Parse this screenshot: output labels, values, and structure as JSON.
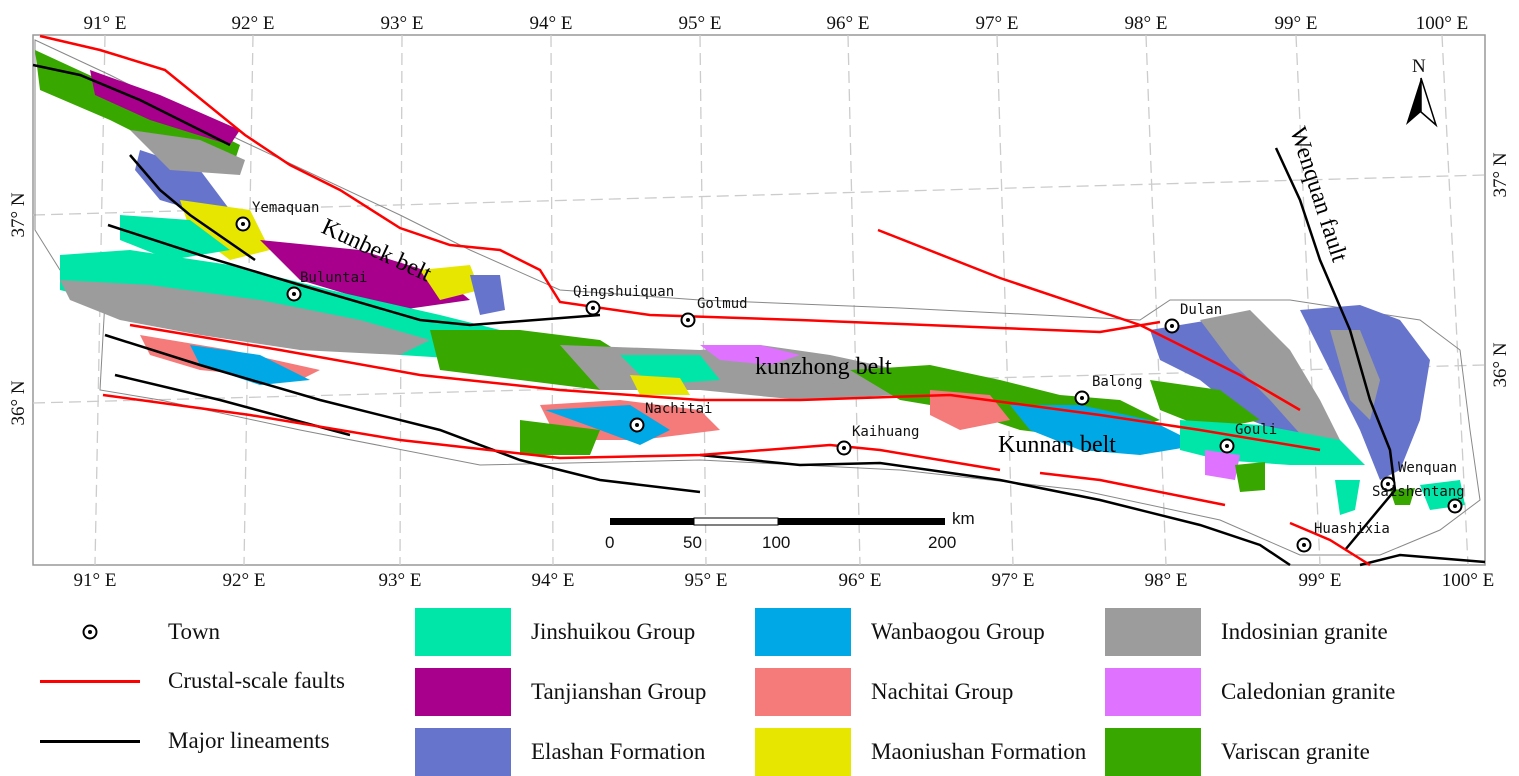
{
  "axes": {
    "lon_top": [
      "91° E",
      "92° E",
      "93° E",
      "94° E",
      "95° E",
      "96° E",
      "97° E",
      "98° E",
      "99° E",
      "100° E"
    ],
    "lon_bottom": [
      "91° E",
      "92° E",
      "93° E",
      "94° E",
      "95° E",
      "96° E",
      "97° E",
      "98° E",
      "99° E",
      "100° E"
    ],
    "lat_left": [
      "37° N",
      "36° N"
    ],
    "lat_right": [
      "37° N",
      "36° N"
    ]
  },
  "north_arrow": "N",
  "towns": [
    "Yemaquan",
    "Buluntai",
    "Qingshuiquan",
    "Golmud",
    "Dulan",
    "Balong",
    "Nachitai",
    "Kaihuang",
    "Gouli",
    "Wenquan",
    "Saishentang",
    "Huashixia"
  ],
  "belts": [
    "Kunbek belt",
    "kunzhong belt",
    "Kunnan belt"
  ],
  "fault_label": "Wenquan fault",
  "scale_bar": {
    "labels": [
      "0",
      "50",
      "100",
      "200"
    ],
    "unit": "km"
  },
  "legend": [
    {
      "label": "Town",
      "symbol": "town-icon"
    },
    {
      "label": "Crustal-scale faults",
      "color": "#ff0000"
    },
    {
      "label": "Major lineaments",
      "color": "#000000"
    },
    {
      "label": "Jinshuikou Group",
      "color": "#00e6a9"
    },
    {
      "label": "Tanjianshan Group",
      "color": "#a8008c"
    },
    {
      "label": "Elashan Formation",
      "color": "#6674cc"
    },
    {
      "label": "Wanbaogou Group",
      "color": "#00a9e6"
    },
    {
      "label": "Nachitai Group",
      "color": "#f57a7a"
    },
    {
      "label": "Maoniushan Formation",
      "color": "#e6e600"
    },
    {
      "label": "Indosinian granite",
      "color": "#9c9c9c"
    },
    {
      "label": "Caledonian granite",
      "color": "#df73ff"
    },
    {
      "label": "Variscan granite",
      "color": "#38a800"
    }
  ]
}
